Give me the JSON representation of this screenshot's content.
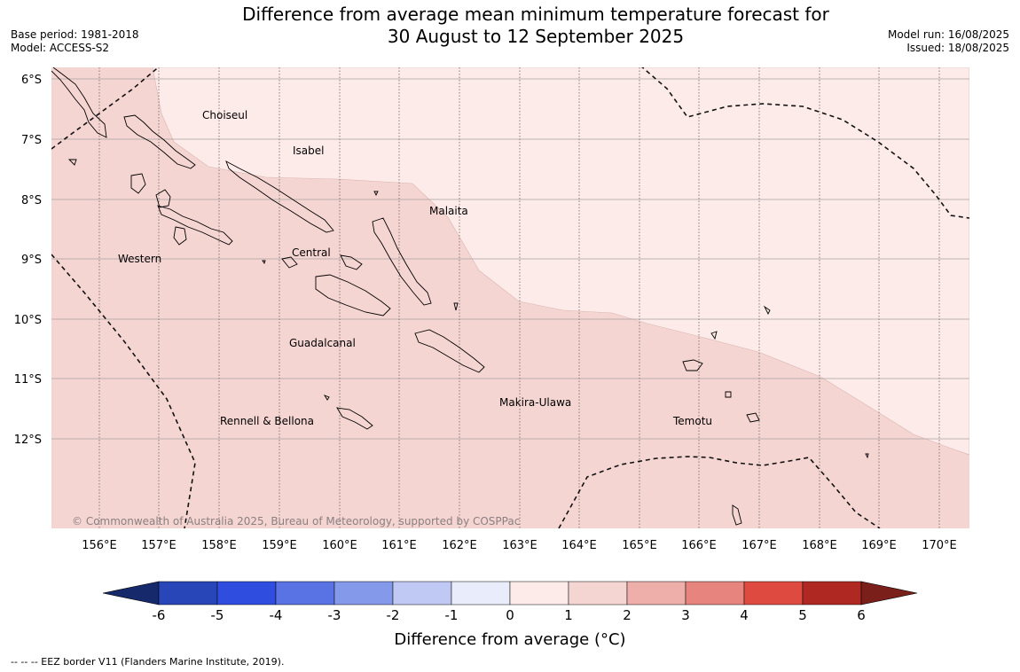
{
  "title_line1": "Difference from average mean minimum temperature forecast for",
  "title_line2": "30 August to 12 September 2025",
  "meta_left": {
    "base_period": "Base period: 1981-2018",
    "model": "Model: ACCESS-S2"
  },
  "meta_right": {
    "model_run": "Model run: 16/08/2025",
    "issued": "Issued: 18/08/2025"
  },
  "lat_labels": [
    "6°S",
    "7°S",
    "8°S",
    "9°S",
    "10°S",
    "11°S",
    "12°S"
  ],
  "lon_labels": [
    "156°E",
    "157°E",
    "158°E",
    "159°E",
    "160°E",
    "161°E",
    "162°E",
    "163°E",
    "164°E",
    "165°E",
    "166°E",
    "167°E",
    "168°E",
    "169°E",
    "170°E"
  ],
  "region_labels": {
    "choiseul": "Choiseul",
    "isabel": "Isabel",
    "malaita": "Malaita",
    "western": "Western",
    "central": "Central",
    "guadalcanal": "Guadalcanal",
    "rennell": "Rennell & Bellona",
    "makira": "Makira-Ulawa",
    "temotu": "Temotu"
  },
  "copyright": "© Commonwealth of Australia 2025, Bureau of Meteorology, supported by COSPPac",
  "colorbar": {
    "ticks": [
      "-6",
      "-5",
      "-4",
      "-3",
      "-2",
      "-1",
      "0",
      "1",
      "2",
      "3",
      "4",
      "5",
      "6"
    ],
    "title": "Difference from average (°C)",
    "colors": [
      "#1f3a8f",
      "#2846b8",
      "#2f4ee0",
      "#5a73e4",
      "#8599ea",
      "#c0c9f4",
      "#e8ecfb",
      "#fcebe9",
      "#f5d5d2",
      "#eeafaa",
      "#e8847e",
      "#de4a40",
      "#b02822",
      "#7a1f1a"
    ],
    "under_color": "#162a6b",
    "over_color": "#7a1f1a"
  },
  "fill_colors": {
    "zone_0_1": "#fcebe9",
    "zone_1_2": "#f5d5d2"
  },
  "footer": "--  --  -- EEZ border V11 (Flanders Marine Institute, 2019)."
}
